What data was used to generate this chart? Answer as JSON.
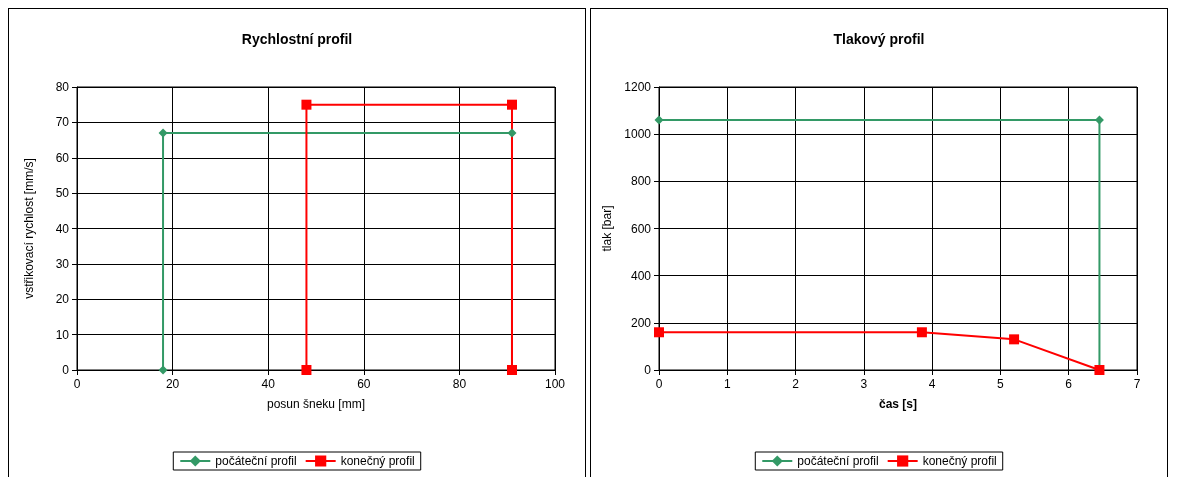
{
  "chart_data": [
    {
      "type": "line",
      "title": "Rychlostní profil",
      "xlabel": "posun šneku [mm]",
      "ylabel": "vstřikovací rychlost [mm/s]",
      "xlim": [
        0,
        100
      ],
      "xticks": [
        0,
        20,
        40,
        60,
        80,
        100
      ],
      "ylim": [
        0,
        80
      ],
      "yticks": [
        0,
        10,
        20,
        30,
        40,
        50,
        60,
        70,
        80
      ],
      "grid": true,
      "legend": "bottom",
      "series": [
        {
          "name": "počáteční profil",
          "color": "#339966",
          "marker": "diamond",
          "x": [
            18,
            18,
            91,
            91
          ],
          "values": [
            0,
            67,
            67,
            0
          ]
        },
        {
          "name": "konečný profil",
          "color": "#ff0000",
          "marker": "square",
          "x": [
            48,
            48,
            91,
            91
          ],
          "values": [
            0,
            75,
            75,
            0
          ]
        }
      ]
    },
    {
      "type": "line",
      "title": "Tlakový profil",
      "xlabel": "čas [s]",
      "ylabel": "tlak [bar]",
      "xlim": [
        0,
        7
      ],
      "xticks": [
        0,
        1,
        2,
        3,
        4,
        5,
        6,
        7
      ],
      "ylim": [
        0,
        1200
      ],
      "yticks": [
        0,
        200,
        400,
        600,
        800,
        1000,
        1200
      ],
      "grid": true,
      "legend": "bottom",
      "series": [
        {
          "name": "počáteční profil",
          "color": "#339966",
          "marker": "diamond",
          "x": [
            0,
            6.45,
            6.45
          ],
          "values": [
            1060,
            1060,
            0
          ]
        },
        {
          "name": "konečný profil",
          "color": "#ff0000",
          "marker": "square",
          "x": [
            0,
            3.85,
            5.2,
            6.45
          ],
          "values": [
            160,
            160,
            130,
            0
          ]
        }
      ]
    }
  ]
}
